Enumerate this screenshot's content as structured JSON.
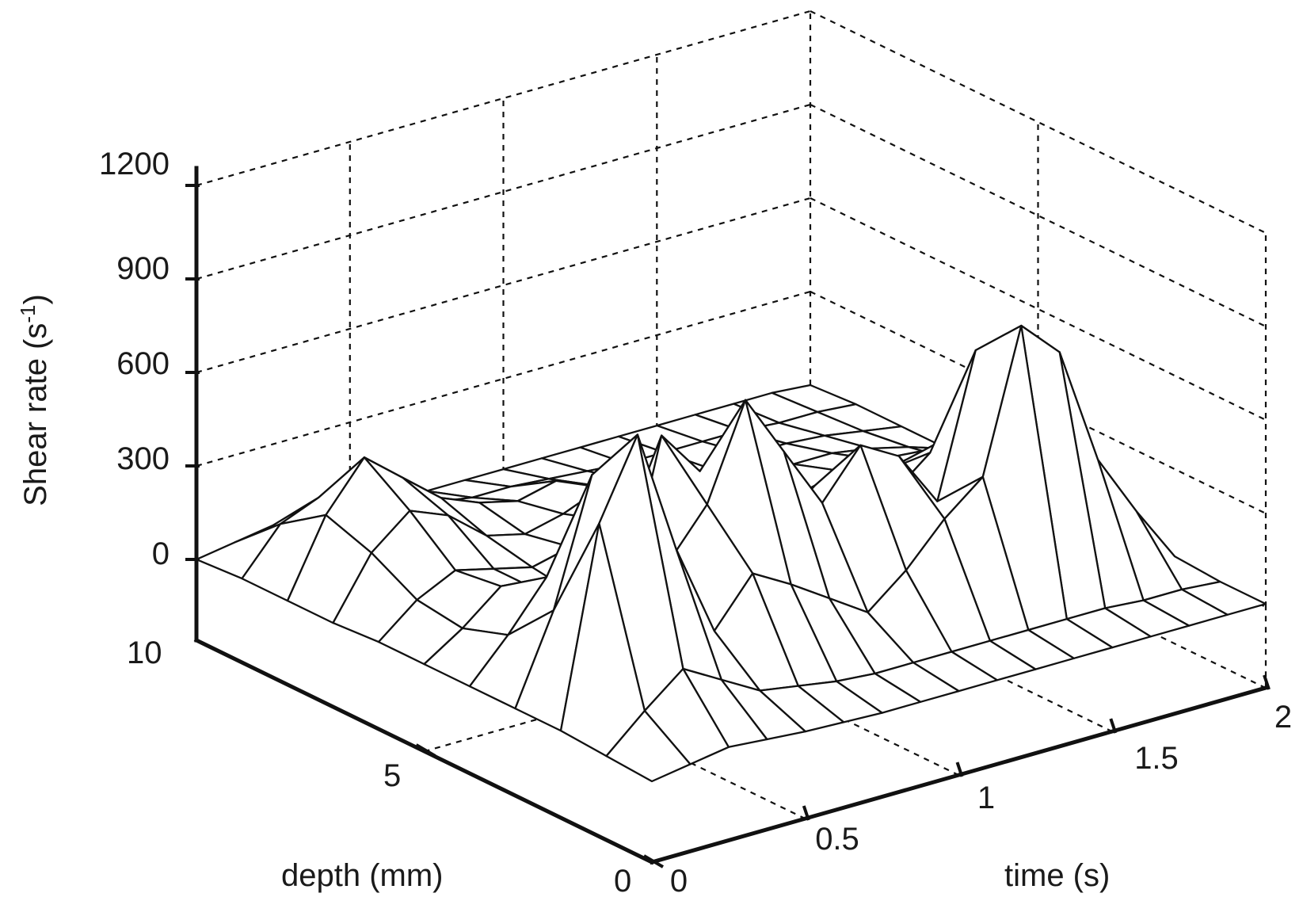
{
  "chart_data": {
    "type": "surface",
    "title": "",
    "xlabel": "time (s)",
    "ylabel": "depth (mm)",
    "zlabel_main": "Shear rate (s",
    "zlabel_sup": "-1",
    "zlabel_end": ")",
    "xlim": [
      0,
      2
    ],
    "ylim": [
      0,
      10
    ],
    "zlim": [
      0,
      1200
    ],
    "x_ticks": [
      "0",
      "0.5",
      "1",
      "1.5",
      "2"
    ],
    "y_ticks": [
      "0",
      "5",
      "10"
    ],
    "z_ticks": [
      "0",
      "300",
      "600",
      "900",
      "1200"
    ],
    "grid": true,
    "time": [
      0,
      0.125,
      0.25,
      0.375,
      0.5,
      0.625,
      0.75,
      0.875,
      1,
      1.125,
      1.25,
      1.375,
      1.5,
      1.625,
      1.75,
      1.875,
      2
    ],
    "depth": [
      0,
      1,
      2,
      3,
      4,
      5,
      6,
      7,
      8,
      9,
      10
    ],
    "shear_rate": [
      [
        0,
        20,
        40,
        30,
        20,
        15,
        10,
        10,
        10,
        10,
        10,
        10,
        10,
        10,
        10,
        10,
        10
      ],
      [
        10,
        120,
        220,
        150,
        80,
        60,
        40,
        30,
        30,
        30,
        30,
        30,
        30,
        30,
        20,
        20,
        10
      ],
      [
        20,
        650,
        900,
        500,
        200,
        350,
        280,
        200,
        120,
        220,
        350,
        450,
        900,
        780,
        400,
        200,
        20
      ],
      [
        20,
        300,
        700,
        600,
        350,
        500,
        800,
        600,
        400,
        550,
        480,
        300,
        750,
        700,
        450,
        200,
        20
      ],
      [
        20,
        150,
        300,
        250,
        150,
        650,
        500,
        300,
        250,
        350,
        300,
        250,
        350,
        400,
        300,
        150,
        20
      ],
      [
        20,
        100,
        200,
        150,
        100,
        200,
        300,
        350,
        250,
        200,
        200,
        180,
        220,
        250,
        200,
        100,
        20
      ],
      [
        20,
        120,
        180,
        150,
        120,
        150,
        200,
        250,
        200,
        150,
        120,
        100,
        150,
        150,
        100,
        80,
        20
      ],
      [
        10,
        200,
        300,
        250,
        150,
        120,
        150,
        200,
        150,
        120,
        100,
        80,
        100,
        100,
        80,
        50,
        10
      ],
      [
        10,
        250,
        400,
        300,
        200,
        150,
        120,
        150,
        100,
        80,
        60,
        50,
        60,
        60,
        50,
        30,
        10
      ],
      [
        10,
        150,
        200,
        150,
        100,
        80,
        60,
        60,
        50,
        40,
        30,
        30,
        30,
        30,
        20,
        20,
        10
      ],
      [
        0,
        20,
        40,
        30,
        20,
        15,
        10,
        10,
        10,
        10,
        10,
        10,
        10,
        10,
        10,
        10,
        0
      ]
    ]
  }
}
